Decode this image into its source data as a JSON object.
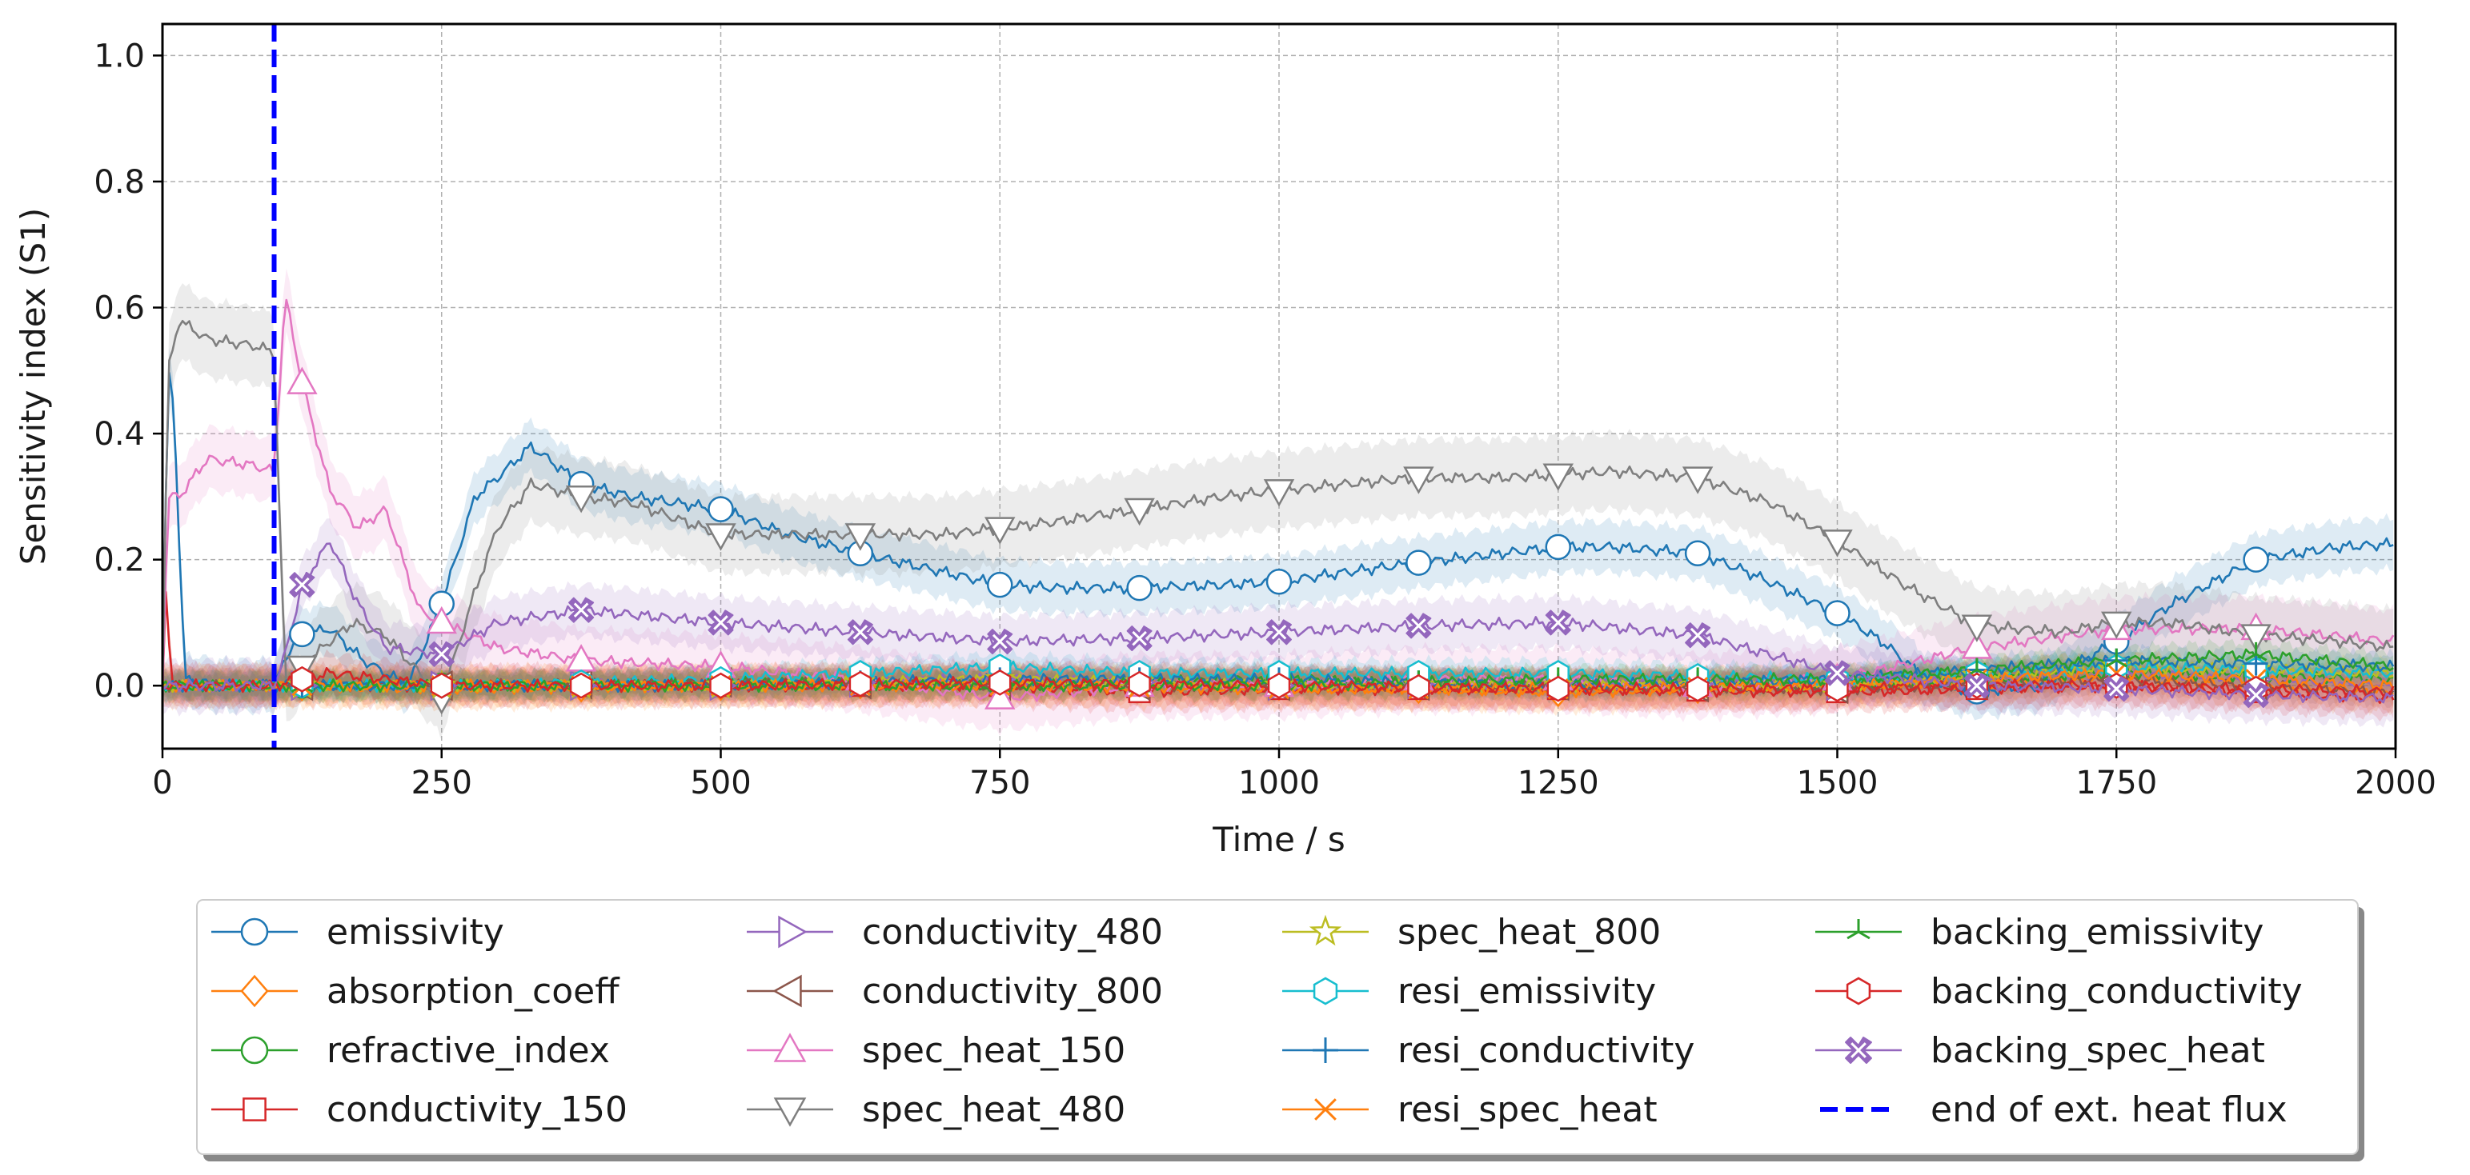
{
  "chart_data": {
    "type": "line",
    "title": "",
    "xlabel": "Time / s",
    "ylabel": "Sensitivity index (S1)",
    "xlim": [
      0,
      2000
    ],
    "ylim": [
      -0.1,
      1.05
    ],
    "xticks": [
      0,
      250,
      500,
      750,
      1000,
      1250,
      1500,
      1750,
      2000
    ],
    "yticks": [
      0.0,
      0.2,
      0.4,
      0.6,
      0.8,
      1.0
    ],
    "xtick_labels": [
      "0",
      "250",
      "500",
      "750",
      "1000",
      "1250",
      "1500",
      "1750",
      "2000"
    ],
    "ytick_labels": [
      "0.0",
      "0.2",
      "0.4",
      "0.6",
      "0.8",
      "1.0"
    ],
    "grid": true,
    "legend_position": "bottom-center",
    "vline": {
      "name": "end of ext. heat flux",
      "x": 100,
      "color": "#0000ff",
      "style": "dashed"
    },
    "marker_x": [
      125,
      250,
      375,
      500,
      625,
      750,
      875,
      1000,
      1125,
      1250,
      1375,
      1500,
      1625,
      1750,
      1875
    ],
    "series": [
      {
        "name": "emissivity",
        "color": "#1f77b4",
        "marker": "circle",
        "x": [
          0,
          5,
          10,
          20,
          50,
          100,
          120,
          150,
          180,
          220,
          250,
          280,
          300,
          330,
          375,
          420,
          500,
          560,
          625,
          700,
          750,
          800,
          875,
          950,
          1000,
          1060,
          1125,
          1200,
          1250,
          1300,
          1375,
          1420,
          1500,
          1540,
          1580,
          1620,
          1680,
          1750,
          1800,
          1875,
          1950,
          2000
        ],
        "y": [
          0.0,
          0.5,
          0.45,
          0.01,
          0.0,
          0.0,
          0.08,
          0.09,
          0.04,
          0.0,
          0.13,
          0.3,
          0.33,
          0.38,
          0.32,
          0.3,
          0.28,
          0.24,
          0.21,
          0.18,
          0.16,
          0.155,
          0.155,
          0.16,
          0.165,
          0.18,
          0.195,
          0.21,
          0.22,
          0.22,
          0.21,
          0.18,
          0.115,
          0.07,
          0.01,
          -0.01,
          0.0,
          0.07,
          0.13,
          0.2,
          0.22,
          0.225
        ],
        "band": 0.04
      },
      {
        "name": "absorption_coeff",
        "color": "#ff7f0e",
        "marker": "diamond",
        "x": [
          0,
          100,
          250,
          500,
          750,
          1000,
          1250,
          1500,
          1750,
          2000
        ],
        "y": [
          0.0,
          0.0,
          -0.005,
          0.0,
          0.005,
          0.0,
          -0.01,
          0.0,
          0.01,
          -0.01
        ],
        "band": 0.03
      },
      {
        "name": "refractive_index",
        "color": "#2ca02c",
        "marker": "circle",
        "x": [
          0,
          100,
          250,
          500,
          750,
          1000,
          1250,
          1500,
          1750,
          2000
        ],
        "y": [
          0.0,
          0.0,
          0.0,
          0.005,
          0.0,
          0.01,
          0.0,
          0.0,
          0.02,
          0.01
        ],
        "band": 0.02
      },
      {
        "name": "conductivity_150",
        "color": "#d62728",
        "marker": "square",
        "x": [
          0,
          3,
          8,
          20,
          100,
          250,
          500,
          750,
          875,
          1000,
          1250,
          1500,
          1750,
          2000
        ],
        "y": [
          0.0,
          0.15,
          0.0,
          0.0,
          0.0,
          0.0,
          0.0,
          0.0,
          -0.01,
          -0.005,
          -0.005,
          -0.01,
          0.0,
          -0.02
        ],
        "band": 0.03
      },
      {
        "name": "conductivity_480",
        "color": "#9467bd",
        "marker": "triangle-right",
        "x": [
          0,
          100,
          250,
          500,
          750,
          1000,
          1250,
          1500,
          1750,
          2000
        ],
        "y": [
          0.0,
          0.0,
          0.0,
          0.0,
          0.01,
          0.0,
          0.005,
          0.0,
          0.02,
          0.0
        ],
        "band": 0.02
      },
      {
        "name": "conductivity_800",
        "color": "#8c564b",
        "marker": "triangle-left",
        "x": [
          0,
          100,
          250,
          500,
          750,
          1000,
          1250,
          1500,
          1750,
          2000
        ],
        "y": [
          0.0,
          0.0,
          0.0,
          0.005,
          0.0,
          0.0,
          0.0,
          -0.005,
          0.01,
          -0.01
        ],
        "band": 0.02
      },
      {
        "name": "spec_heat_150",
        "color": "#e377c2",
        "marker": "triangle-up",
        "x": [
          0,
          5,
          15,
          40,
          80,
          100,
          110,
          125,
          150,
          175,
          200,
          230,
          250,
          300,
          375,
          500,
          625,
          750,
          875,
          1000,
          1125,
          1250,
          1375,
          1500,
          1625,
          1750,
          1875,
          2000
        ],
        "y": [
          0.0,
          0.3,
          0.3,
          0.36,
          0.35,
          0.34,
          0.62,
          0.48,
          0.31,
          0.25,
          0.28,
          0.12,
          0.1,
          0.06,
          0.04,
          0.03,
          0.01,
          -0.02,
          0.0,
          0.0,
          0.01,
          0.01,
          0.0,
          0.01,
          0.06,
          0.09,
          0.09,
          0.07
        ],
        "band": 0.05
      },
      {
        "name": "spec_heat_480",
        "color": "#7f7f7f",
        "marker": "triangle-down",
        "x": [
          0,
          5,
          15,
          40,
          80,
          100,
          110,
          130,
          170,
          200,
          230,
          250,
          280,
          300,
          330,
          375,
          420,
          500,
          560,
          625,
          700,
          750,
          800,
          875,
          950,
          1000,
          1060,
          1125,
          1200,
          1250,
          1300,
          1375,
          1440,
          1500,
          1560,
          1625,
          1700,
          1750,
          1800,
          1875,
          1950,
          2000
        ],
        "y": [
          0.0,
          0.5,
          0.58,
          0.55,
          0.54,
          0.53,
          0.0,
          0.04,
          0.1,
          0.08,
          0.02,
          -0.02,
          0.15,
          0.25,
          0.32,
          0.3,
          0.29,
          0.24,
          0.24,
          0.24,
          0.24,
          0.25,
          0.26,
          0.28,
          0.3,
          0.31,
          0.32,
          0.33,
          0.33,
          0.335,
          0.34,
          0.33,
          0.29,
          0.23,
          0.16,
          0.095,
          0.085,
          0.1,
          0.1,
          0.08,
          0.07,
          0.06
        ],
        "band": 0.06
      },
      {
        "name": "spec_heat_800",
        "color": "#bcbd22",
        "marker": "star",
        "x": [
          0,
          100,
          250,
          500,
          750,
          1000,
          1250,
          1500,
          1750,
          2000
        ],
        "y": [
          0.0,
          0.0,
          0.0,
          0.0,
          0.01,
          0.0,
          0.0,
          0.0,
          0.03,
          0.02
        ],
        "band": 0.02
      },
      {
        "name": "resi_emissivity",
        "color": "#17becf",
        "marker": "hexagon",
        "x": [
          0,
          100,
          250,
          500,
          625,
          750,
          875,
          1000,
          1250,
          1500,
          1750,
          2000
        ],
        "y": [
          0.0,
          0.0,
          0.0,
          0.01,
          0.02,
          0.03,
          0.02,
          0.02,
          0.02,
          0.01,
          0.03,
          0.02
        ],
        "band": 0.02
      },
      {
        "name": "resi_conductivity",
        "color": "#1f77b4",
        "marker": "plus",
        "x": [
          0,
          100,
          250,
          500,
          750,
          1000,
          1250,
          1500,
          1750,
          2000
        ],
        "y": [
          0.0,
          0.0,
          0.0,
          0.0,
          0.01,
          0.01,
          0.0,
          0.01,
          0.04,
          0.03
        ],
        "band": 0.02
      },
      {
        "name": "resi_spec_heat",
        "color": "#ff7f0e",
        "marker": "x",
        "x": [
          0,
          100,
          250,
          500,
          750,
          1000,
          1250,
          1500,
          1750,
          2000
        ],
        "y": [
          0.0,
          0.0,
          0.0,
          0.0,
          0.0,
          -0.005,
          -0.005,
          0.0,
          0.02,
          0.0
        ],
        "band": 0.03
      },
      {
        "name": "backing_emissivity",
        "color": "#2ca02c",
        "marker": "tri-star",
        "x": [
          0,
          100,
          250,
          500,
          750,
          1000,
          1250,
          1500,
          1750,
          1875,
          2000
        ],
        "y": [
          0.0,
          0.0,
          0.0,
          0.0,
          0.0,
          0.0,
          0.01,
          0.01,
          0.04,
          0.05,
          0.03
        ],
        "band": 0.02
      },
      {
        "name": "backing_conductivity",
        "color": "#d62728",
        "marker": "hexagon",
        "x": [
          0,
          100,
          150,
          250,
          500,
          750,
          1000,
          1250,
          1500,
          1625,
          1750,
          1875,
          2000
        ],
        "y": [
          0.0,
          0.0,
          0.02,
          0.0,
          0.0,
          0.005,
          0.0,
          -0.005,
          -0.005,
          0.0,
          0.0,
          -0.005,
          -0.01
        ],
        "band": 0.03
      },
      {
        "name": "backing_spec_heat",
        "color": "#9467bd",
        "marker": "x-filled",
        "x": [
          0,
          100,
          110,
          125,
          150,
          175,
          200,
          250,
          300,
          375,
          500,
          625,
          750,
          875,
          1000,
          1125,
          1250,
          1375,
          1500,
          1625,
          1750,
          1875,
          2000
        ],
        "y": [
          0.0,
          0.0,
          0.05,
          0.16,
          0.23,
          0.13,
          0.06,
          0.05,
          0.1,
          0.12,
          0.1,
          0.085,
          0.07,
          0.075,
          0.085,
          0.095,
          0.1,
          0.08,
          0.02,
          0.0,
          -0.005,
          -0.015,
          -0.02
        ],
        "band": 0.04
      }
    ],
    "legend": [
      "emissivity",
      "absorption_coeff",
      "refractive_index",
      "conductivity_150",
      "conductivity_480",
      "conductivity_800",
      "spec_heat_150",
      "spec_heat_480",
      "spec_heat_800",
      "resi_emissivity",
      "resi_conductivity",
      "resi_spec_heat",
      "backing_emissivity",
      "backing_conductivity",
      "backing_spec_heat",
      "end of ext. heat flux"
    ]
  }
}
